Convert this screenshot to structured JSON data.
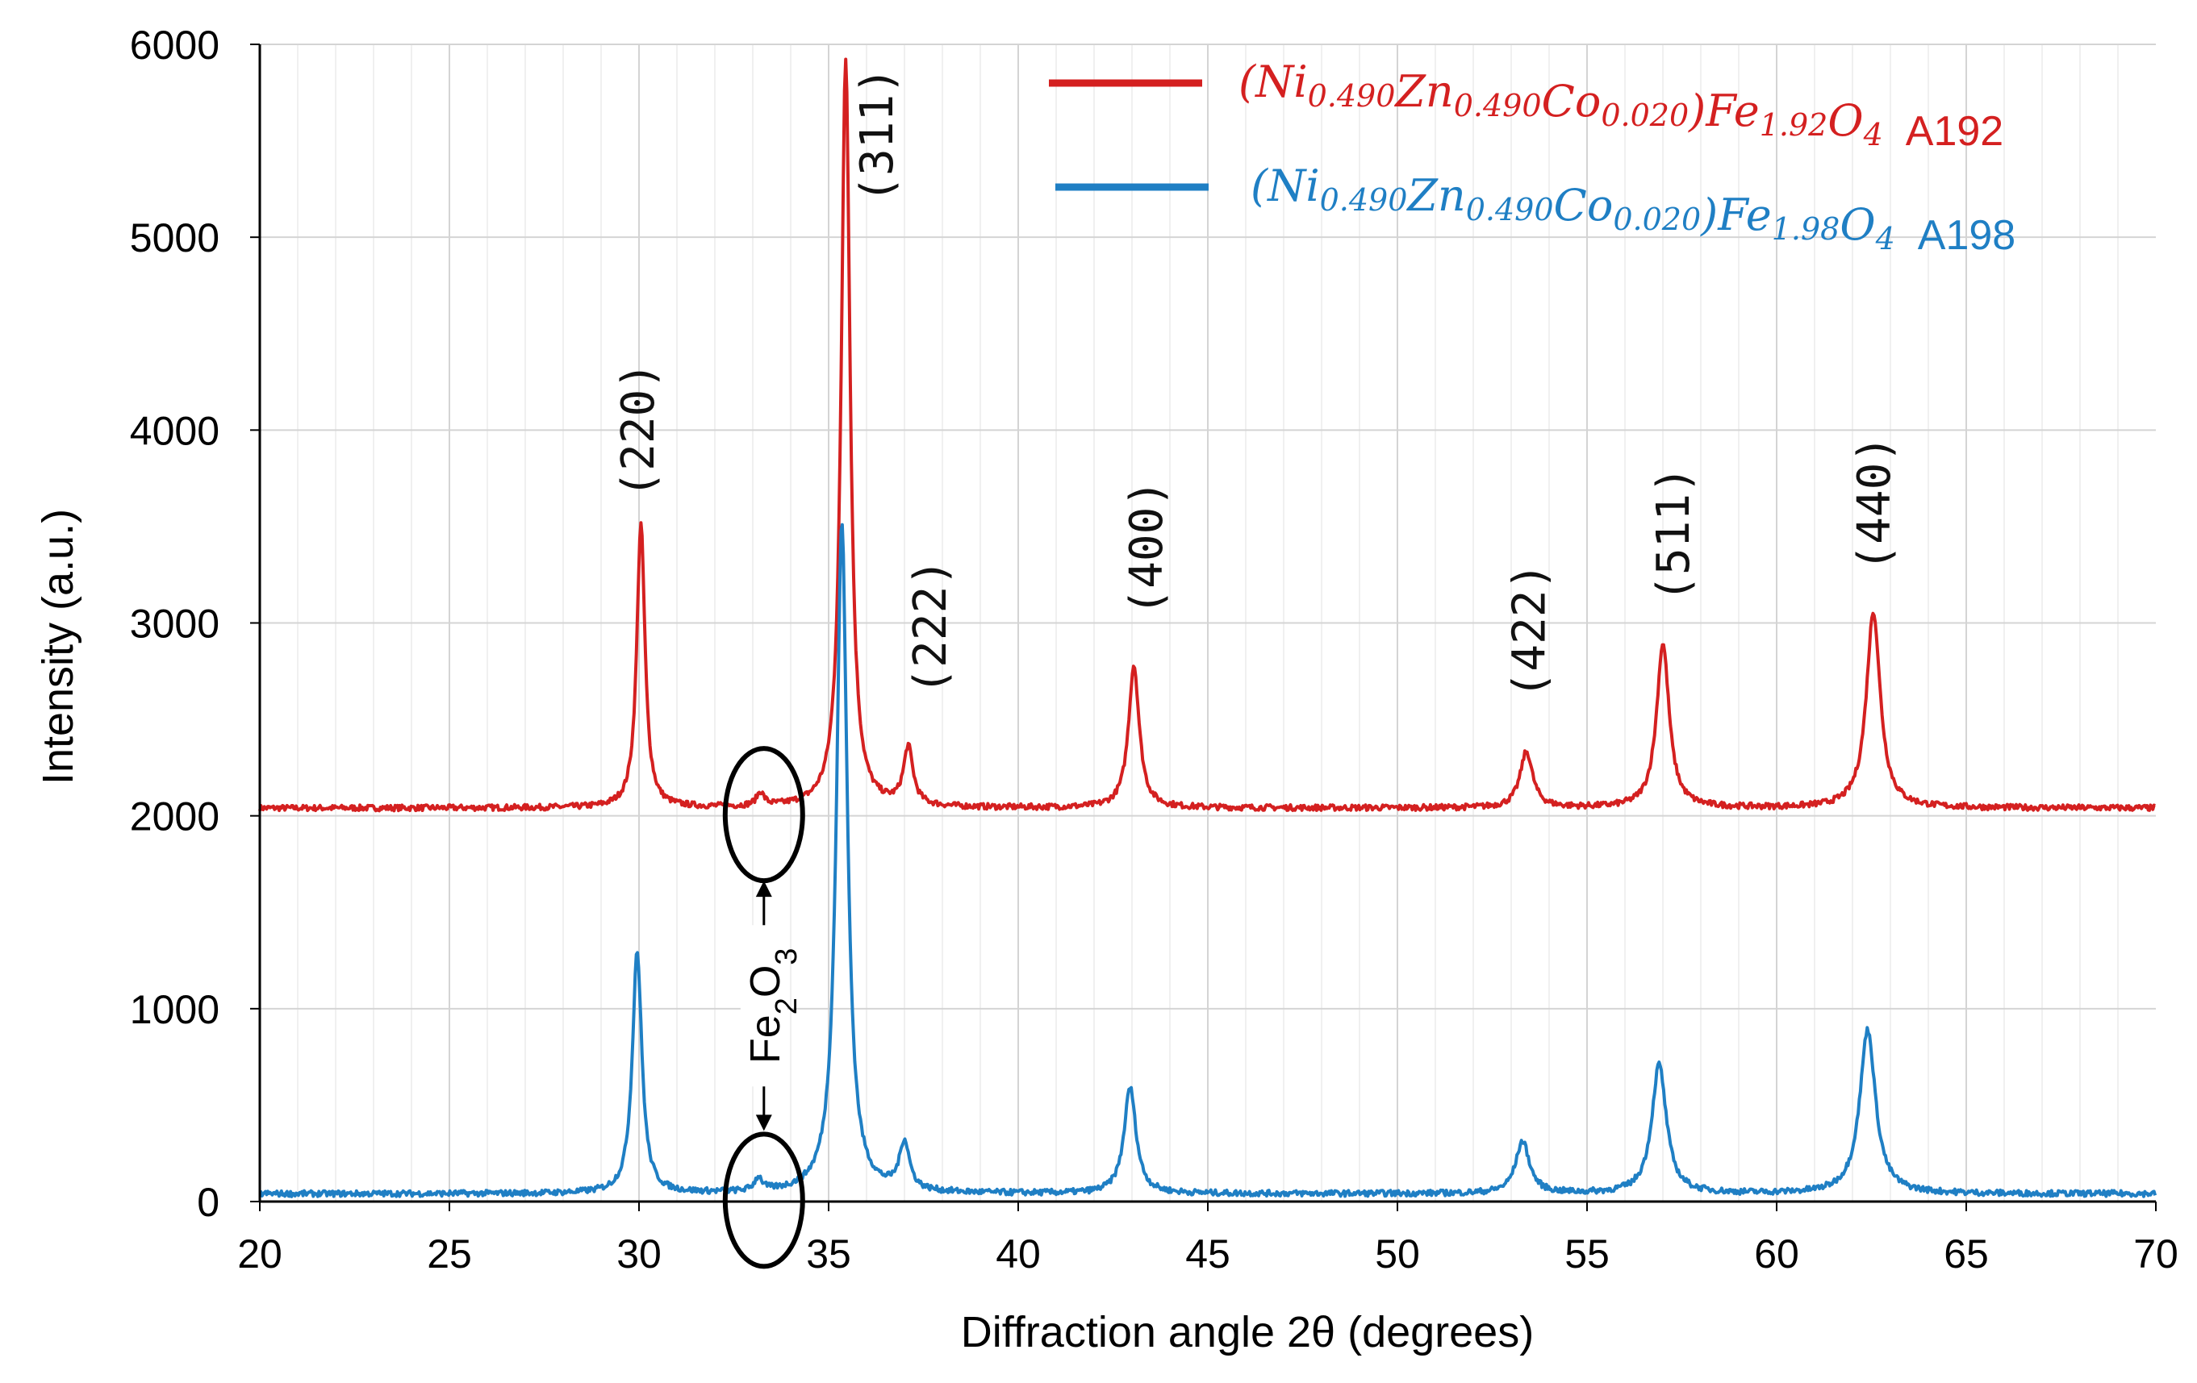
{
  "chart_data": {
    "type": "line",
    "xlabel": "Diffraction angle 2θ (degrees)",
    "ylabel": "Intensity (a.u.)",
    "xlim": [
      20,
      70
    ],
    "ylim": [
      0,
      6000
    ],
    "x_ticks": [
      20,
      25,
      30,
      35,
      40,
      45,
      50,
      55,
      60,
      65,
      70
    ],
    "y_ticks": [
      0,
      1000,
      2000,
      3000,
      4000,
      5000,
      6000
    ],
    "grid": true,
    "legend_position": "top-right",
    "series": [
      {
        "name": "(Ni0.490Zn0.490Co0.020)Fe1.92O4 A192",
        "legend": {
          "formula": "(Ni0.490Zn0.490Co0.020)Fe1.92O4",
          "sample": "A192"
        },
        "color": "#d42020",
        "baseline": 2040,
        "peaks": [
          {
            "x": 30.05,
            "y": 3510,
            "w": 0.13
          },
          {
            "x": 33.2,
            "y": 2110,
            "w": 0.12
          },
          {
            "x": 35.45,
            "y": 5930,
            "w": 0.14
          },
          {
            "x": 37.1,
            "y": 2340,
            "w": 0.15
          },
          {
            "x": 43.05,
            "y": 2780,
            "w": 0.17
          },
          {
            "x": 53.4,
            "y": 2330,
            "w": 0.2
          },
          {
            "x": 57.0,
            "y": 2890,
            "w": 0.2
          },
          {
            "x": 62.55,
            "y": 3060,
            "w": 0.22
          }
        ]
      },
      {
        "name": "(Ni0.490Zn0.490Co0.020)Fe1.98O4 A198",
        "legend": {
          "formula": "(Ni0.490Zn0.490Co0.020)Fe1.98O4",
          "sample": "A198"
        },
        "color": "#1f7fc4",
        "baseline": 40,
        "peaks": [
          {
            "x": 29.95,
            "y": 1300,
            "w": 0.15
          },
          {
            "x": 33.15,
            "y": 110,
            "w": 0.12
          },
          {
            "x": 35.35,
            "y": 3520,
            "w": 0.17
          },
          {
            "x": 37.0,
            "y": 290,
            "w": 0.16
          },
          {
            "x": 42.95,
            "y": 590,
            "w": 0.19
          },
          {
            "x": 53.3,
            "y": 310,
            "w": 0.22
          },
          {
            "x": 56.9,
            "y": 710,
            "w": 0.23
          },
          {
            "x": 62.4,
            "y": 890,
            "w": 0.25
          }
        ]
      }
    ],
    "annotations": {
      "hkl": [
        {
          "label": "(220)",
          "x": 30.0,
          "y": 4000
        },
        {
          "label": "(311)",
          "x": 36.3,
          "y": 5530
        },
        {
          "label": "(222)",
          "x": 37.7,
          "y": 2980
        },
        {
          "label": "(400)",
          "x": 43.4,
          "y": 3390
        },
        {
          "label": "(422)",
          "x": 53.5,
          "y": 2960
        },
        {
          "label": "(511)",
          "x": 57.3,
          "y": 3460
        },
        {
          "label": "(440)",
          "x": 62.6,
          "y": 3620
        }
      ],
      "impurity": {
        "label": "Fe2O3",
        "x": 33.4,
        "marker_y": [
          2040,
          40
        ]
      }
    }
  }
}
